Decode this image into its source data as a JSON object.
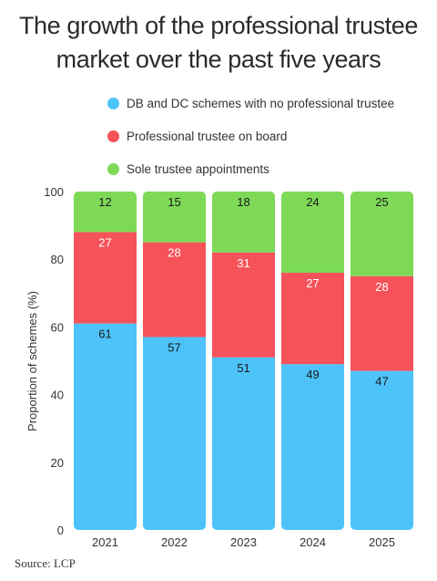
{
  "title_line1": "The growth of the professional trustee",
  "title_line2": "market over the past five years",
  "source": "Source: LCP",
  "chart_data": {
    "type": "bar",
    "stacked": true,
    "categories": [
      "2021",
      "2022",
      "2023",
      "2024",
      "2025"
    ],
    "series": [
      {
        "name": "DB and DC schemes with no professional trustee",
        "color": "#4dc3fa",
        "values": [
          61,
          57,
          51,
          49,
          47
        ]
      },
      {
        "name": "Professional trustee on board",
        "color": "#f5525a",
        "values": [
          27,
          28,
          31,
          27,
          28
        ]
      },
      {
        "name": "Sole trustee appointments",
        "color": "#7ed957",
        "values": [
          12,
          15,
          18,
          24,
          25
        ]
      }
    ],
    "ylabel": "Proportion of schemes (%)",
    "ylim": [
      0,
      100
    ],
    "yticks": [
      0,
      20,
      40,
      60,
      80,
      100
    ],
    "legend_position": "top",
    "grid": false
  }
}
